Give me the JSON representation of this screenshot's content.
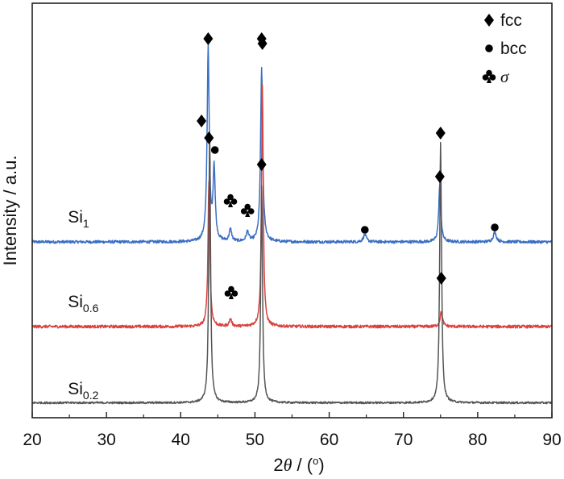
{
  "chart_data": {
    "type": "line",
    "x_axis": {
      "label_prefix": "2",
      "label_symbol": "θ",
      "label_suffix": " / (",
      "label_unit": "o",
      "label_close": ")",
      "min": 20,
      "max": 90,
      "ticks": [
        "20",
        "30",
        "40",
        "50",
        "60",
        "70",
        "80",
        "90"
      ]
    },
    "y_axis": {
      "label": "Intensity / a.u.",
      "show_tick_labels": false
    },
    "grid": false,
    "legend": {
      "placement": "top-right",
      "entries": [
        {
          "marker": "diamond",
          "text": "fcc",
          "italic": false
        },
        {
          "marker": "circle",
          "text": "bcc",
          "italic": false
        },
        {
          "marker": "club",
          "text": "σ",
          "italic": true
        }
      ]
    },
    "series": [
      {
        "name_base": "Si",
        "name_sub": "1",
        "color": "#3a6fc4",
        "baseline": 0.7,
        "noise": 0.012,
        "peaks": [
          {
            "x": 43.7,
            "h": 0.8,
            "w": 0.17
          },
          {
            "x": 44.5,
            "h": 0.3,
            "w": 0.17
          },
          {
            "x": 46.7,
            "h": 0.05,
            "w": 0.2
          },
          {
            "x": 49.0,
            "h": 0.04,
            "w": 0.2
          },
          {
            "x": 50.9,
            "h": 0.72,
            "w": 0.17
          },
          {
            "x": 64.8,
            "h": 0.03,
            "w": 0.25
          },
          {
            "x": 74.9,
            "h": 0.24,
            "w": 0.17
          },
          {
            "x": 82.3,
            "h": 0.04,
            "w": 0.25
          }
        ],
        "markers": [
          {
            "x": 43.7,
            "y": 1.54,
            "type": "diamond"
          },
          {
            "x": 44.6,
            "y": 1.08,
            "type": "circle"
          },
          {
            "x": 46.7,
            "y": 0.87,
            "type": "club"
          },
          {
            "x": 49.0,
            "y": 0.83,
            "type": "club"
          },
          {
            "x": 50.9,
            "y": 1.54,
            "type": "diamond"
          },
          {
            "x": 64.8,
            "y": 0.75,
            "type": "circle"
          },
          {
            "x": 74.9,
            "y": 0.97,
            "type": "diamond"
          },
          {
            "x": 82.3,
            "y": 0.76,
            "type": "circle"
          }
        ],
        "label_x": 24.8,
        "label_y": 0.78
      },
      {
        "name_base": "Si",
        "name_sub": "0.6",
        "color": "#d9423f",
        "baseline": 0.35,
        "noise": 0.012,
        "peaks": [
          {
            "x": 43.8,
            "h": 0.6,
            "w": 0.15
          },
          {
            "x": 46.7,
            "h": 0.03,
            "w": 0.2
          },
          {
            "x": 51.0,
            "h": 1.0,
            "w": 0.14
          },
          {
            "x": 75.1,
            "h": 0.06,
            "w": 0.2
          }
        ],
        "markers": [
          {
            "x": 43.8,
            "y": 1.13,
            "type": "diamond"
          },
          {
            "x": 46.8,
            "y": 0.49,
            "type": "club"
          },
          {
            "x": 51.0,
            "y": 1.52,
            "type": "diamond"
          },
          {
            "x": 75.1,
            "y": 0.55,
            "type": "diamond"
          }
        ],
        "label_x": 24.8,
        "label_y": 0.43
      },
      {
        "name_base": "Si",
        "name_sub": "0.2",
        "color": "#555555",
        "baseline": 0.035,
        "noise": 0.008,
        "peaks": [
          {
            "x": 43.9,
            "h": 1.12,
            "w": 0.14
          },
          {
            "x": 50.9,
            "h": 0.9,
            "w": 0.14
          },
          {
            "x": 75.0,
            "h": 1.04,
            "w": 0.14
          },
          {
            "x": 75.15,
            "h": 0.1,
            "w": 0.12
          }
        ],
        "markers": [
          {
            "x": 42.8,
            "y": 1.2,
            "type": "diamond"
          },
          {
            "x": 50.9,
            "y": 1.02,
            "type": "diamond"
          },
          {
            "x": 75.0,
            "y": 1.15,
            "type": "diamond"
          }
        ],
        "label_x": 24.8,
        "label_y": 0.07
      }
    ]
  }
}
